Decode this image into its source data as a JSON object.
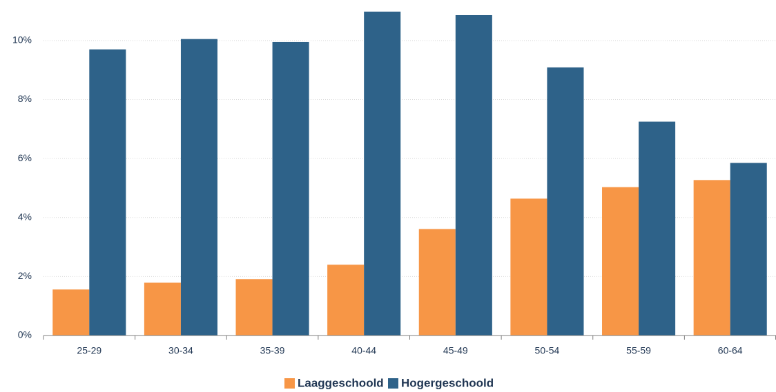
{
  "chart_data": {
    "type": "bar",
    "categories": [
      "25-29",
      "30-34",
      "35-39",
      "40-44",
      "45-49",
      "50-54",
      "55-59",
      "60-64"
    ],
    "series": [
      {
        "name": "Laaggeschoold",
        "color": "#f79646",
        "values": [
          1.56,
          1.79,
          1.91,
          2.4,
          3.61,
          4.64,
          5.03,
          5.27
        ]
      },
      {
        "name": "Hogergeschoold",
        "color": "#2e6289",
        "values": [
          9.7,
          10.05,
          9.95,
          10.98,
          10.86,
          9.09,
          7.25,
          5.85
        ]
      }
    ],
    "ylim": [
      0,
      11
    ],
    "yticks": [
      {
        "value": 0,
        "label": "0%"
      },
      {
        "value": 2,
        "label": "2%"
      },
      {
        "value": 4,
        "label": "4%"
      },
      {
        "value": 6,
        "label": "6%"
      },
      {
        "value": 8,
        "label": "8%"
      },
      {
        "value": 10,
        "label": "10%"
      }
    ],
    "grid": true,
    "legend": "bottom"
  }
}
